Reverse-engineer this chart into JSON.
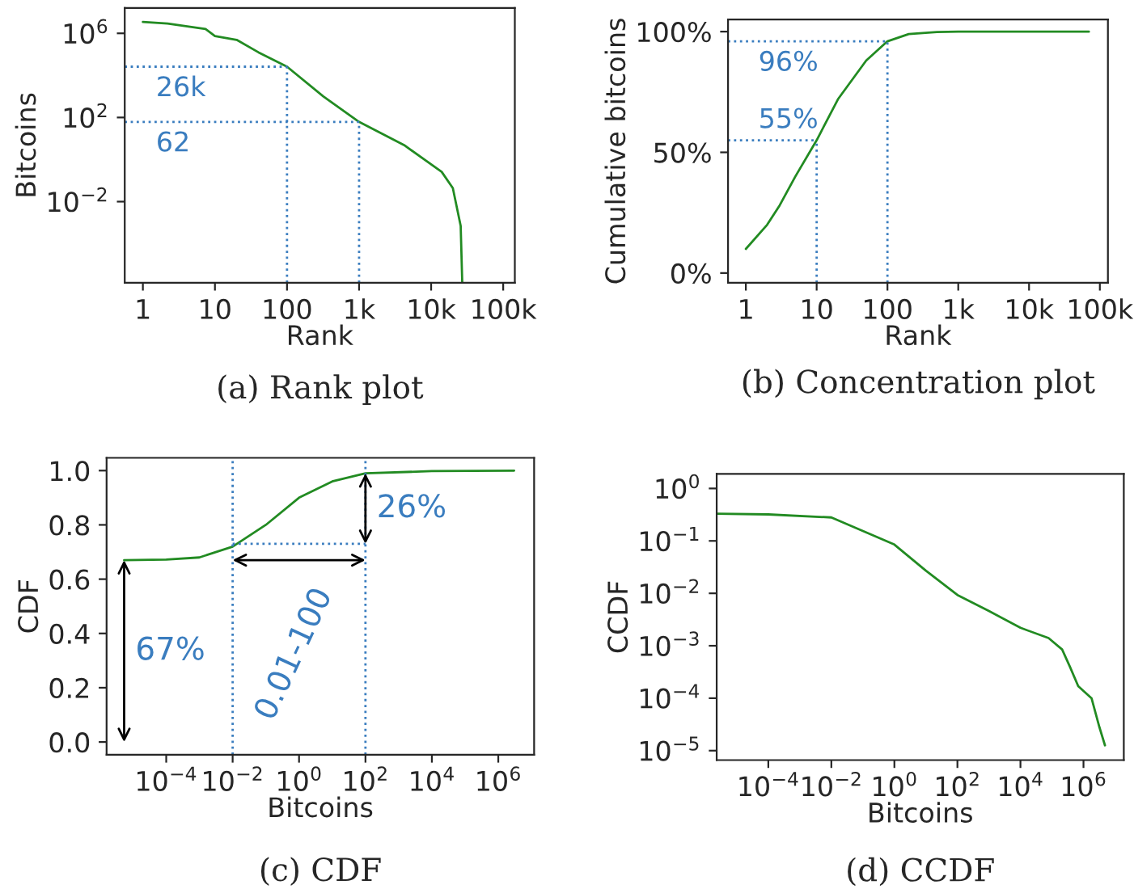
{
  "chart_data": [
    {
      "type": "line",
      "title": "(a) Rank plot",
      "xlabel": "Rank",
      "ylabel": "Bitcoins",
      "log": "xy",
      "xlim": [
        0.56,
        145000
      ],
      "ylim": [
        1.4e-06,
        16000000.0
      ],
      "xticks": [
        {
          "value": 1,
          "label": "1"
        },
        {
          "value": 10,
          "label": "10"
        },
        {
          "value": 100,
          "label": "100"
        },
        {
          "value": 1000,
          "label": "1k"
        },
        {
          "value": 10000,
          "label": "10k"
        },
        {
          "value": 100000,
          "label": "100k"
        }
      ],
      "yticks": [
        {
          "value": 0.01,
          "label": "10$^{−2}$"
        },
        {
          "value": 100,
          "label": "10$^{2}$"
        },
        {
          "value": 1000000.0,
          "label": "10$^{6}$"
        }
      ],
      "series": [
        {
          "color": "#228b22",
          "x": [
            1,
            2.2,
            7.4,
            10,
            20,
            40,
            100,
            320,
            1000,
            4200,
            14000,
            20000,
            25700,
            27000
          ],
          "values": [
            3500000.0,
            2900000.0,
            1600000.0,
            740000.0,
            490000.0,
            126000.0,
            26000,
            1000,
            62,
            4.9,
            0.26,
            0.044,
            0.0007,
            1.5e-06
          ]
        }
      ],
      "ref_lines": [
        {
          "axis": "x",
          "value": 100,
          "label": null,
          "color": "#3a7dbf",
          "line_style": "dotted"
        },
        {
          "axis": "x",
          "value": 1000,
          "label": null,
          "color": "#3a7dbf",
          "line_style": "dotted"
        },
        {
          "axis": "y",
          "value": 26000,
          "label": "26k",
          "color": "#3a7dbf",
          "line_style": "dotted"
        },
        {
          "axis": "y",
          "value": 62,
          "label": "62",
          "color": "#3a7dbf",
          "line_style": "dotted"
        }
      ]
    },
    {
      "type": "line",
      "title": "(b) Concentration plot",
      "xlabel": "Rank",
      "ylabel": "Cumulative bitcoins",
      "log": "x",
      "xlim": [
        0.56,
        130000
      ],
      "ylim": [
        -4,
        105
      ],
      "xticks": [
        {
          "value": 1,
          "label": "1"
        },
        {
          "value": 10,
          "label": "10"
        },
        {
          "value": 100,
          "label": "100"
        },
        {
          "value": 1000,
          "label": "1k"
        },
        {
          "value": 10000,
          "label": "10k"
        },
        {
          "value": 100000,
          "label": "100k"
        }
      ],
      "yticks": [
        {
          "value": 0,
          "label": "0%"
        },
        {
          "value": 50,
          "label": "50%"
        },
        {
          "value": 100,
          "label": "100%"
        }
      ],
      "series": [
        {
          "color": "#228b22",
          "x": [
            1,
            2,
            3,
            5,
            10,
            20,
            50,
            100,
            200,
            500,
            1000,
            10000,
            70000
          ],
          "values": [
            10,
            20,
            28,
            40,
            55,
            72,
            88,
            96,
            99,
            99.8,
            100,
            100,
            100
          ]
        }
      ],
      "ref_lines": [
        {
          "axis": "x",
          "value": 10,
          "label": null,
          "color": "#3a7dbf",
          "line_style": "dotted"
        },
        {
          "axis": "x",
          "value": 100,
          "label": null,
          "color": "#3a7dbf",
          "line_style": "dotted"
        },
        {
          "axis": "y",
          "value": 55,
          "label": "55%",
          "color": "#3a7dbf",
          "line_style": "dotted"
        },
        {
          "axis": "y",
          "value": 96,
          "label": "96%",
          "color": "#3a7dbf",
          "line_style": "dotted"
        }
      ]
    },
    {
      "type": "line",
      "title": "(c) CDF",
      "xlabel": "Bitcoins",
      "ylabel": "CDF",
      "log": "x",
      "xlim": [
        1.6e-06,
        12000000.0
      ],
      "ylim": [
        -0.047,
        1.047
      ],
      "xticks": [
        {
          "value": 0.0001,
          "label": "10$^{−4}$"
        },
        {
          "value": 0.01,
          "label": "10$^{−2}$"
        },
        {
          "value": 1,
          "label": "10$^{0}$"
        },
        {
          "value": 100,
          "label": "10$^{2}$"
        },
        {
          "value": 10000.0,
          "label": "10$^{4}$"
        },
        {
          "value": 1000000.0,
          "label": "10$^{6}$"
        }
      ],
      "yticks": [
        {
          "value": 0,
          "label": "0.0"
        },
        {
          "value": 0.2,
          "label": "0.2"
        },
        {
          "value": 0.4,
          "label": "0.4"
        },
        {
          "value": 0.6,
          "label": "0.6"
        },
        {
          "value": 0.8,
          "label": "0.8"
        },
        {
          "value": 1,
          "label": "1.0"
        }
      ],
      "series": [
        {
          "color": "#228b22",
          "x": [
            5.4e-06,
            0.0001,
            0.001,
            0.01,
            0.1,
            1,
            10,
            100,
            10000.0,
            3000000.0
          ],
          "values": [
            0.67,
            0.672,
            0.68,
            0.72,
            0.8,
            0.9,
            0.96,
            0.99,
            0.998,
            1.0
          ]
        }
      ],
      "ref_lines": [
        {
          "axis": "x",
          "value": 0.01,
          "label": null,
          "color": "#3a7dbf",
          "line_style": "dotted"
        },
        {
          "axis": "x",
          "value": 100,
          "label": null,
          "color": "#3a7dbf",
          "line_style": "dotted"
        },
        {
          "axis": "y",
          "value": 0.73,
          "label": null,
          "color": "#3a7dbf",
          "line_style": "dotted"
        }
      ],
      "annotations": [
        "67%",
        "26%",
        "0.01-100"
      ]
    },
    {
      "type": "line",
      "title": "(d) CCDF",
      "xlabel": "Bitcoins",
      "ylabel": "CCDF",
      "log": "xy",
      "xlim": [
        2.3e-06,
        19000000.0
      ],
      "ylim": [
        6.6e-06,
        1.9
      ],
      "xticks": [
        {
          "value": 0.0001,
          "label": "10$^{−4}$"
        },
        {
          "value": 0.01,
          "label": "10$^{−2}$"
        },
        {
          "value": 1,
          "label": "10$^{0}$"
        },
        {
          "value": 100,
          "label": "10$^{2}$"
        },
        {
          "value": 10000.0,
          "label": "10$^{4}$"
        },
        {
          "value": 1000000.0,
          "label": "10$^{6}$"
        }
      ],
      "yticks": [
        {
          "value": 1e-05,
          "label": "10$^{−5}$"
        },
        {
          "value": 0.0001,
          "label": "10$^{−4}$"
        },
        {
          "value": 0.001,
          "label": "10$^{−3}$"
        },
        {
          "value": 0.01,
          "label": "10$^{−2}$"
        },
        {
          "value": 0.1,
          "label": "10$^{−1}$"
        },
        {
          "value": 1,
          "label": "10$^{0}$"
        }
      ],
      "series": [
        {
          "color": "#228b22",
          "x": [
            2.3e-06,
            0.0001,
            0.01,
            1,
            10,
            100,
            1000,
            10000,
            78000,
            210000,
            370000,
            680000,
            1800000.0,
            3200000.0,
            4800000.0
          ],
          "values": [
            0.33,
            0.32,
            0.28,
            0.085,
            0.027,
            0.0093,
            0.0046,
            0.0022,
            0.0014,
            0.00085,
            0.0004,
            0.00017,
            0.0001,
            2.8e-05,
            1.26e-05
          ]
        }
      ]
    }
  ]
}
